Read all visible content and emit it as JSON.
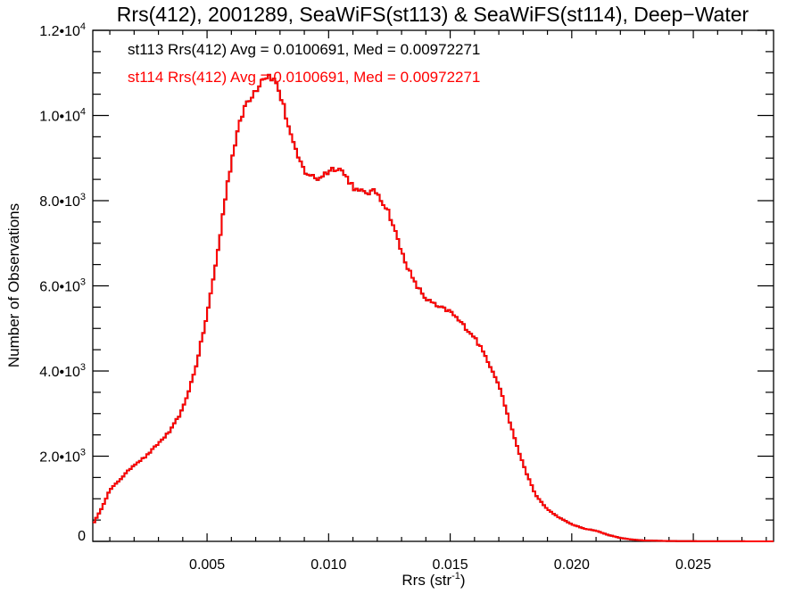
{
  "chart_data": {
    "type": "histogram",
    "title": "Rrs(412), 2001289, SeaWiFS(st113) & SeaWiFS(st114), Deep−Water",
    "xlabel": "Rrs (str",
    "xlabel_sup": "-1",
    "xlabel_end": ")",
    "ylabel": "Number of Observations",
    "xlim": [
      0.0003,
      0.0283
    ],
    "ylim": [
      0,
      12000
    ],
    "x_ticks": [
      {
        "value": 0.005,
        "label": "0.005"
      },
      {
        "value": 0.01,
        "label": "0.010"
      },
      {
        "value": 0.015,
        "label": "0.015"
      },
      {
        "value": 0.02,
        "label": "0.020"
      },
      {
        "value": 0.025,
        "label": "0.025"
      }
    ],
    "y_ticks": [
      {
        "value": 0,
        "label": "0",
        "exp": ""
      },
      {
        "value": 2000,
        "label": "2.0•10",
        "exp": "3"
      },
      {
        "value": 4000,
        "label": "4.0•10",
        "exp": "3"
      },
      {
        "value": 6000,
        "label": "6.0•10",
        "exp": "3"
      },
      {
        "value": 8000,
        "label": "8.0•10",
        "exp": "3"
      },
      {
        "value": 10000,
        "label": "1.0•10",
        "exp": "4"
      },
      {
        "value": 12000,
        "label": "1.2•10",
        "exp": "4"
      }
    ],
    "annotations": [
      {
        "text": "st113 Rrs(412) Avg = 0.0100691, Med = 0.00972271",
        "color": "#000000"
      },
      {
        "text": "st114 Rrs(412) Avg = 0.0100691, Med = 0.00972271",
        "color": "#ff0000"
      }
    ],
    "series": [
      {
        "name": "st113",
        "color": "#000000"
      },
      {
        "name": "st114",
        "color": "#ff0000"
      }
    ],
    "curve": [
      [
        0.0003,
        400
      ],
      [
        0.0006,
        700
      ],
      [
        0.001,
        1200
      ],
      [
        0.0015,
        1500
      ],
      [
        0.002,
        1800
      ],
      [
        0.0025,
        2000
      ],
      [
        0.003,
        2300
      ],
      [
        0.0035,
        2600
      ],
      [
        0.004,
        3100
      ],
      [
        0.0045,
        4000
      ],
      [
        0.005,
        5300
      ],
      [
        0.0055,
        7000
      ],
      [
        0.0058,
        8300
      ],
      [
        0.0062,
        9500
      ],
      [
        0.0066,
        10300
      ],
      [
        0.007,
        10600
      ],
      [
        0.0073,
        10900
      ],
      [
        0.0076,
        10950
      ],
      [
        0.0079,
        10700
      ],
      [
        0.0082,
        10100
      ],
      [
        0.0086,
        9200
      ],
      [
        0.009,
        8700
      ],
      [
        0.0095,
        8500
      ],
      [
        0.01,
        8700
      ],
      [
        0.0104,
        8800
      ],
      [
        0.0108,
        8500
      ],
      [
        0.0112,
        8200
      ],
      [
        0.0116,
        8200
      ],
      [
        0.012,
        8200
      ],
      [
        0.0125,
        7700
      ],
      [
        0.013,
        6800
      ],
      [
        0.0135,
        6100
      ],
      [
        0.014,
        5700
      ],
      [
        0.0145,
        5500
      ],
      [
        0.015,
        5400
      ],
      [
        0.0155,
        5100
      ],
      [
        0.016,
        4800
      ],
      [
        0.0165,
        4300
      ],
      [
        0.017,
        3700
      ],
      [
        0.0175,
        2700
      ],
      [
        0.018,
        1800
      ],
      [
        0.0185,
        1100
      ],
      [
        0.019,
        750
      ],
      [
        0.0195,
        550
      ],
      [
        0.02,
        400
      ],
      [
        0.0205,
        300
      ],
      [
        0.021,
        250
      ],
      [
        0.0215,
        150
      ],
      [
        0.022,
        80
      ],
      [
        0.0225,
        40
      ],
      [
        0.023,
        20
      ],
      [
        0.024,
        8
      ],
      [
        0.025,
        4
      ],
      [
        0.0265,
        2
      ],
      [
        0.0283,
        0
      ]
    ]
  }
}
